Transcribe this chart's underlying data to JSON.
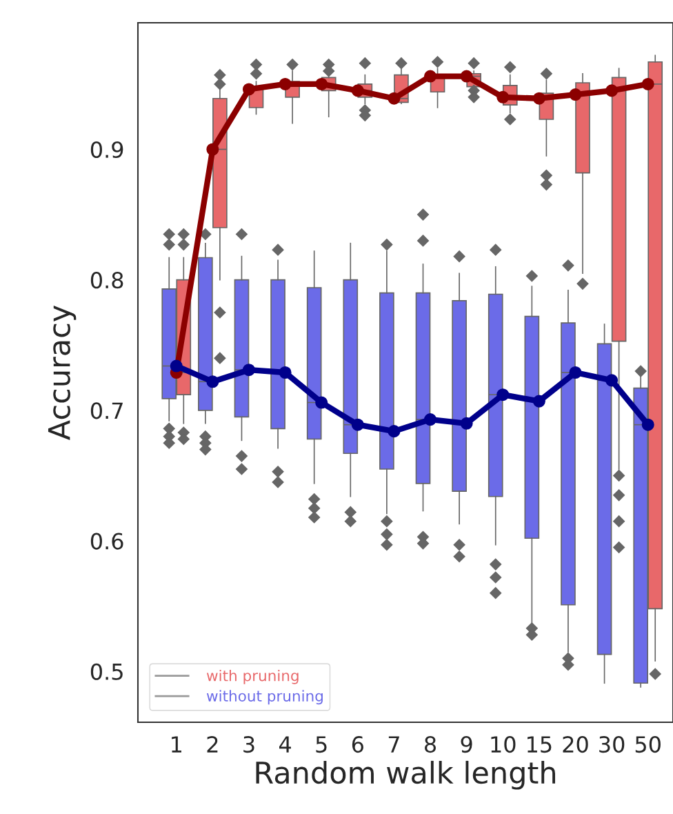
{
  "chart_data": {
    "type": "box",
    "xlabel": "Random walk length",
    "ylabel": "Accuracy",
    "categories": [
      "1",
      "2",
      "3",
      "4",
      "5",
      "6",
      "7",
      "8",
      "9",
      "10",
      "15",
      "20",
      "30",
      "50"
    ],
    "ylim": [
      0.461,
      0.997
    ],
    "yticks": [
      0.5,
      0.6,
      0.7,
      0.8,
      0.9
    ],
    "grid": false,
    "legend": "bottom left",
    "series": [
      {
        "name": "with pruning",
        "color": "#e8686a",
        "boxes": [
          {
            "low": 0.69,
            "q1": 0.712,
            "median": 0.729,
            "q3": 0.8,
            "high": 0.817,
            "outliers": [
              0.835,
              0.827,
              0.683,
              0.678
            ]
          },
          {
            "low": 0.8,
            "q1": 0.84,
            "median": 0.9,
            "q3": 0.939,
            "high": 0.95,
            "outliers": [
              0.957,
              0.95,
              0.775,
              0.74
            ]
          },
          {
            "low": 0.927,
            "q1": 0.932,
            "median": 0.946,
            "q3": 0.947,
            "high": 0.952,
            "outliers": [
              0.965,
              0.958
            ]
          },
          {
            "low": 0.92,
            "q1": 0.94,
            "median": 0.95,
            "q3": 0.952,
            "high": 0.96,
            "outliers": [
              0.965
            ]
          },
          {
            "low": 0.925,
            "q1": 0.945,
            "median": 0.95,
            "q3": 0.955,
            "high": 0.958,
            "outliers": [
              0.965,
              0.96
            ]
          },
          {
            "low": 0.935,
            "q1": 0.94,
            "median": 0.945,
            "q3": 0.95,
            "high": 0.957,
            "outliers": [
              0.966,
              0.93,
              0.926
            ]
          },
          {
            "low": 0.935,
            "q1": 0.936,
            "median": 0.939,
            "q3": 0.957,
            "high": 0.962,
            "outliers": [
              0.966
            ]
          },
          {
            "low": 0.932,
            "q1": 0.944,
            "median": 0.955,
            "q3": 0.957,
            "high": 0.962,
            "outliers": [
              0.967
            ]
          },
          {
            "low": 0.942,
            "q1": 0.948,
            "median": 0.956,
            "q3": 0.958,
            "high": 0.96,
            "outliers": [
              0.966,
              0.945,
              0.94
            ]
          },
          {
            "low": 0.928,
            "q1": 0.934,
            "median": 0.94,
            "q3": 0.949,
            "high": 0.957,
            "outliers": [
              0.963,
              0.923
            ]
          },
          {
            "low": 0.895,
            "q1": 0.923,
            "median": 0.939,
            "q3": 0.943,
            "high": 0.953,
            "outliers": [
              0.958,
              0.88,
              0.873
            ]
          },
          {
            "low": 0.805,
            "q1": 0.882,
            "median": 0.942,
            "q3": 0.951,
            "high": 0.958,
            "outliers": [
              0.797
            ]
          },
          {
            "low": 0.655,
            "q1": 0.753,
            "median": 0.945,
            "q3": 0.955,
            "high": 0.962,
            "outliers": [
              0.65,
              0.635,
              0.615,
              0.595
            ]
          },
          {
            "low": 0.508,
            "q1": 0.548,
            "median": 0.95,
            "q3": 0.967,
            "high": 0.972,
            "outliers": [
              0.498
            ]
          }
        ]
      },
      {
        "name": "without pruning",
        "color": "#6b6be8",
        "boxes": [
          {
            "low": 0.692,
            "q1": 0.709,
            "median": 0.734,
            "q3": 0.793,
            "high": 0.817,
            "outliers": [
              0.835,
              0.827,
              0.686,
              0.68,
              0.675
            ]
          },
          {
            "low": 0.69,
            "q1": 0.7,
            "median": 0.722,
            "q3": 0.817,
            "high": 0.828,
            "outliers": [
              0.835,
              0.68,
              0.675,
              0.67
            ]
          },
          {
            "low": 0.677,
            "q1": 0.695,
            "median": 0.731,
            "q3": 0.8,
            "high": 0.818,
            "outliers": [
              0.835,
              0.665,
              0.655
            ]
          },
          {
            "low": 0.671,
            "q1": 0.686,
            "median": 0.729,
            "q3": 0.8,
            "high": 0.815,
            "outliers": [
              0.823,
              0.653,
              0.645
            ]
          },
          {
            "low": 0.644,
            "q1": 0.678,
            "median": 0.706,
            "q3": 0.794,
            "high": 0.822,
            "outliers": [
              0.632,
              0.625,
              0.618
            ]
          },
          {
            "low": 0.634,
            "q1": 0.667,
            "median": 0.689,
            "q3": 0.8,
            "high": 0.828,
            "outliers": [
              0.622,
              0.615
            ]
          },
          {
            "low": 0.621,
            "q1": 0.655,
            "median": 0.684,
            "q3": 0.79,
            "high": 0.822,
            "outliers": [
              0.827,
              0.615,
              0.605,
              0.597
            ]
          },
          {
            "low": 0.623,
            "q1": 0.644,
            "median": 0.693,
            "q3": 0.79,
            "high": 0.812,
            "outliers": [
              0.85,
              0.83,
              0.603,
              0.598
            ]
          },
          {
            "low": 0.613,
            "q1": 0.638,
            "median": 0.69,
            "q3": 0.784,
            "high": 0.805,
            "outliers": [
              0.818,
              0.597,
              0.588
            ]
          },
          {
            "low": 0.597,
            "q1": 0.634,
            "median": 0.712,
            "q3": 0.789,
            "high": 0.81,
            "outliers": [
              0.823,
              0.582,
              0.572,
              0.56
            ]
          },
          {
            "low": 0.536,
            "q1": 0.602,
            "median": 0.707,
            "q3": 0.772,
            "high": 0.795,
            "outliers": [
              0.803,
              0.533,
              0.528
            ]
          },
          {
            "low": 0.515,
            "q1": 0.551,
            "median": 0.729,
            "q3": 0.767,
            "high": 0.792,
            "outliers": [
              0.811,
              0.51,
              0.505
            ]
          },
          {
            "low": 0.491,
            "q1": 0.513,
            "median": 0.723,
            "q3": 0.751,
            "high": 0.766
          },
          {
            "low": 0.488,
            "q1": 0.491,
            "median": 0.689,
            "q3": 0.717,
            "high": 0.728,
            "outliers": [
              0.73
            ]
          }
        ]
      },
      {
        "type": "line",
        "color": "#8b0000",
        "marker": "circle",
        "values": [
          0.729,
          0.9,
          0.946,
          0.95,
          0.95,
          0.945,
          0.939,
          0.956,
          0.956,
          0.94,
          0.939,
          0.942,
          0.945,
          0.95
        ]
      },
      {
        "type": "line",
        "color": "#00008b",
        "marker": "circle",
        "values": [
          0.734,
          0.722,
          0.731,
          0.729,
          0.706,
          0.689,
          0.684,
          0.693,
          0.69,
          0.712,
          0.707,
          0.729,
          0.723,
          0.689
        ]
      }
    ]
  }
}
